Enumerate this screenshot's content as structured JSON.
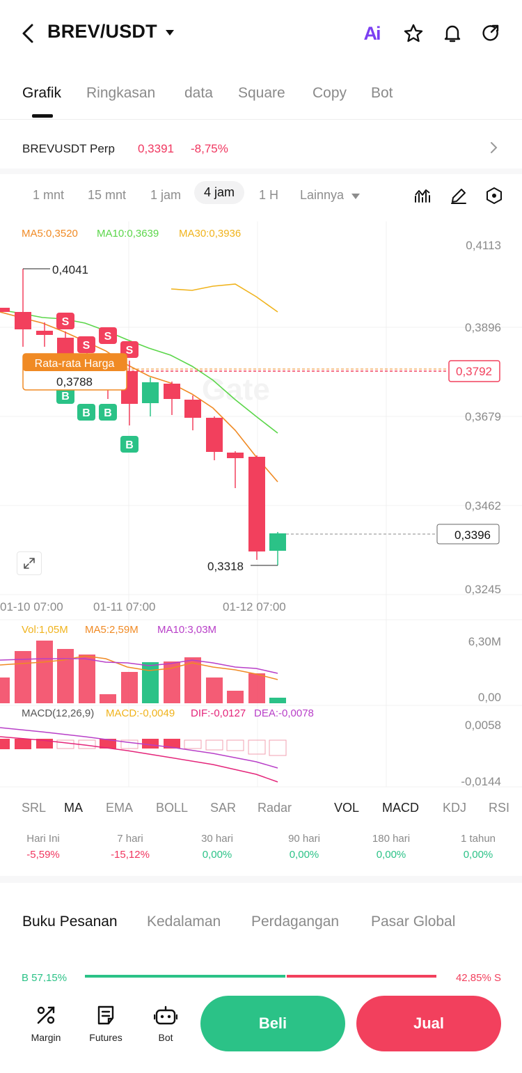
{
  "header": {
    "title": "BREV/USDT",
    "ai_label": "Ai"
  },
  "tabs": [
    "Grafik",
    "Ringkasan",
    "data",
    "Square",
    "Copy",
    "Bot"
  ],
  "perp": {
    "name": "BREVUSDT Perp",
    "price": "0,3391",
    "change": "-8,75%"
  },
  "intervals": [
    "1 mnt",
    "15 mnt",
    "1 jam",
    "4 jam",
    "1 H"
  ],
  "intervals_more": "Lainnya",
  "ma": {
    "ma5": "MA5:0,3520",
    "ma10": "MA10:0,3639",
    "ma30": "MA30:0,3936"
  },
  "price_axis": [
    "0,4113",
    "0,3896",
    "0,3679",
    "0,3462",
    "0,3245"
  ],
  "annotations": {
    "high": "0,4041",
    "low": "0,3318",
    "avg_title": "Rata-rata Harga",
    "avg_value": "0,3788",
    "avg_tag": "0,3792",
    "current": "0,3396",
    "sell_marker": "S",
    "buy_marker": "B"
  },
  "time_axis": [
    "01-10 07:00",
    "01-11 07:00",
    "01-12 07:00"
  ],
  "volume": {
    "vol": "Vol:1,05M",
    "ma5": "MA5:2,59M",
    "ma10": "MA10:3,03M",
    "axis_top": "6,30M",
    "axis_bottom": "0,00"
  },
  "macd": {
    "title": "MACD(12,26,9)",
    "macd": "MACD:-0,0049",
    "dif": "DIF:-0,0127",
    "dea": "DEA:-0,0078",
    "axis_top": "0,0058",
    "axis_bottom": "-0,0144"
  },
  "indicator_tabs": [
    "SRL",
    "MA",
    "EMA",
    "BOLL",
    "SAR",
    "Radar",
    "VOL",
    "MACD",
    "KDJ",
    "RSI"
  ],
  "performance": [
    {
      "label": "Hari Ini",
      "value": "-5,59%",
      "color": "#f0365f"
    },
    {
      "label": "7 hari",
      "value": "-15,12%",
      "color": "#f0365f"
    },
    {
      "label": "30 hari",
      "value": "0,00%",
      "color": "#2bc287"
    },
    {
      "label": "90 hari",
      "value": "0,00%",
      "color": "#2bc287"
    },
    {
      "label": "180 hari",
      "value": "0,00%",
      "color": "#2bc287"
    },
    {
      "label": "1 tahun",
      "value": "0,00%",
      "color": "#2bc287"
    }
  ],
  "book_tabs": [
    "Buku Pesanan",
    "Kedalaman",
    "Perdagangan",
    "Pasar Global"
  ],
  "book_ratio": {
    "buy": "B 57,15%",
    "sell": "42,85% S"
  },
  "bottom_nav": [
    "Margin",
    "Futures",
    "Bot"
  ],
  "actions": {
    "buy": "Beli",
    "sell": "Jual"
  },
  "watermark": "Gate",
  "colors": {
    "up": "#2bc287",
    "down": "#f2405d",
    "accent": "#7b3ff2",
    "ma5": "#f08a24",
    "ma10": "#5bd64a",
    "ma30": "#f0b31c"
  }
}
